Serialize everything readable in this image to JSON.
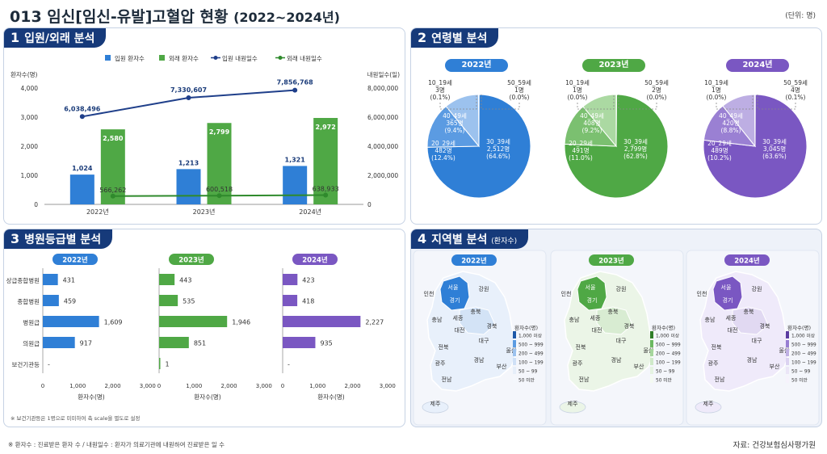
{
  "title": "013 임신[임신-유발]고혈압 현황",
  "title_years": "(2022~2024년)",
  "unit": "(단위: 명)",
  "footnote": "※ 환자수 : 진료받은 환자 수 / 내원일수 : 환자가 의료기관에 내원하여 진료받은 일 수",
  "source": "자료: 건강보험심사평가원",
  "colors": {
    "blue": "#2f7fd6",
    "green": "#4fa845",
    "purple": "#7a57c2",
    "navy": "#163a7a",
    "dark_line": "#1f3f8a",
    "green_line": "#2f8a2c"
  },
  "panels": {
    "p1": {
      "num": "1",
      "label": "입원/외래 분석"
    },
    "p2": {
      "num": "2",
      "label": "연령별 분석"
    },
    "p3": {
      "num": "3",
      "label": "병원등급별 분석",
      "note": "※ 보건기관등은 1명으로 미미하여 축 scale을 별도로 설정"
    },
    "p4": {
      "num": "4",
      "label": "지역별 분석",
      "small": "(환자수)"
    }
  },
  "chart_data": [
    {
      "type": "bar",
      "categories": [
        "2022년",
        "2023년",
        "2024년"
      ],
      "series": [
        {
          "name": "입원 환자수",
          "values": [
            1024,
            1213,
            1321
          ],
          "labels": [
            "1,024",
            "1,213",
            "1,321"
          ]
        },
        {
          "name": "외래 환자수",
          "values": [
            2580,
            2799,
            2972
          ],
          "labels": [
            "2,580",
            "2,799",
            "2,972"
          ]
        },
        {
          "name": "입원 내원일수",
          "values": [
            6038496,
            7330607,
            7856768
          ],
          "labels": [
            "6,038,496",
            "7,330,607",
            "7,856,768"
          ],
          "axis": "right"
        },
        {
          "name": "외래 내원일수",
          "values": [
            566262,
            600518,
            638933
          ],
          "labels": [
            "566,262",
            "600,518",
            "638,933"
          ],
          "axis": "right"
        }
      ],
      "ylabel": "환자수(명)",
      "y2label": "내원일수(일)",
      "ylim": [
        0,
        4000
      ],
      "y2lim": [
        0,
        8000000
      ],
      "yticks": [
        "0",
        "1,000",
        "2,000",
        "3,000",
        "4,000"
      ],
      "y2ticks": [
        "0",
        "2,000,000",
        "4,000,000",
        "6,000,000",
        "8,000,000"
      ],
      "legend": "top"
    },
    {
      "type": "pie",
      "charts": [
        {
          "year": "2022년",
          "slices": [
            {
              "name": "30_39세",
              "count": "2,512명",
              "pct": "(64.6%)",
              "value": 64.6
            },
            {
              "name": "20_29세",
              "count": "482명",
              "pct": "(12.4%)",
              "value": 12.4
            },
            {
              "name": "40_49세",
              "count": "365명",
              "pct": "(9.4%)",
              "value": 9.4
            },
            {
              "name": "10_19세",
              "count": "3명",
              "pct": "(0.1%)",
              "value": 0.1
            },
            {
              "name": "50_59세",
              "count": "1명",
              "pct": "(0.0%)",
              "value": 0.0
            }
          ]
        },
        {
          "year": "2023년",
          "slices": [
            {
              "name": "30_39세",
              "count": "2,799명",
              "pct": "(62.8%)",
              "value": 62.8
            },
            {
              "name": "20_29세",
              "count": "491명",
              "pct": "(11.0%)",
              "value": 11.0
            },
            {
              "name": "40_49세",
              "count": "408명",
              "pct": "(9.2%)",
              "value": 9.2
            },
            {
              "name": "10_19세",
              "count": "1명",
              "pct": "(0.0%)",
              "value": 0.0
            },
            {
              "name": "50_59세",
              "count": "2명",
              "pct": "(0.0%)",
              "value": 0.0
            }
          ]
        },
        {
          "year": "2024년",
          "slices": [
            {
              "name": "30_39세",
              "count": "3,045명",
              "pct": "(63.6%)",
              "value": 63.6
            },
            {
              "name": "20_29세",
              "count": "489명",
              "pct": "(10.2%)",
              "value": 10.2
            },
            {
              "name": "40_49세",
              "count": "420명",
              "pct": "(8.8%)",
              "value": 8.8
            },
            {
              "name": "10_19세",
              "count": "1명",
              "pct": "(0.0%)",
              "value": 0.0
            },
            {
              "name": "50_59세",
              "count": "4명",
              "pct": "(0.1%)",
              "value": 0.1
            }
          ]
        }
      ]
    },
    {
      "type": "bar",
      "orientation": "horizontal",
      "categories": [
        "상급종합병원",
        "종합병원",
        "병원급",
        "의원급",
        "보건기관등"
      ],
      "xlabel": "환자수(명)",
      "xlim": [
        0,
        3000
      ],
      "xticks": [
        "0",
        "1,000",
        "2,000",
        "3,000"
      ],
      "groups": [
        {
          "year": "2022년",
          "values": [
            431,
            459,
            1609,
            917,
            null
          ],
          "labels": [
            "431",
            "459",
            "1,609",
            "917",
            "-"
          ]
        },
        {
          "year": "2023년",
          "values": [
            443,
            535,
            1946,
            851,
            1
          ],
          "labels": [
            "443",
            "535",
            "1,946",
            "851",
            "1"
          ]
        },
        {
          "year": "2024년",
          "values": [
            423,
            418,
            2227,
            935,
            null
          ],
          "labels": [
            "423",
            "418",
            "2,227",
            "935",
            "-"
          ]
        }
      ]
    },
    {
      "type": "map",
      "years": [
        "2022년",
        "2023년",
        "2024년"
      ],
      "regions": [
        "서울",
        "경기",
        "강원",
        "인천",
        "충북",
        "충남",
        "세종",
        "대전",
        "경북",
        "대구",
        "전북",
        "울산",
        "경남",
        "광주",
        "부산",
        "전남",
        "제주"
      ],
      "legend_title": "환자수(명)",
      "legend_items": [
        "1,000 이상",
        "500 ~ 999",
        "200 ~ 499",
        "100 ~ 199",
        "50 ~ 99",
        "50 미만"
      ]
    }
  ]
}
